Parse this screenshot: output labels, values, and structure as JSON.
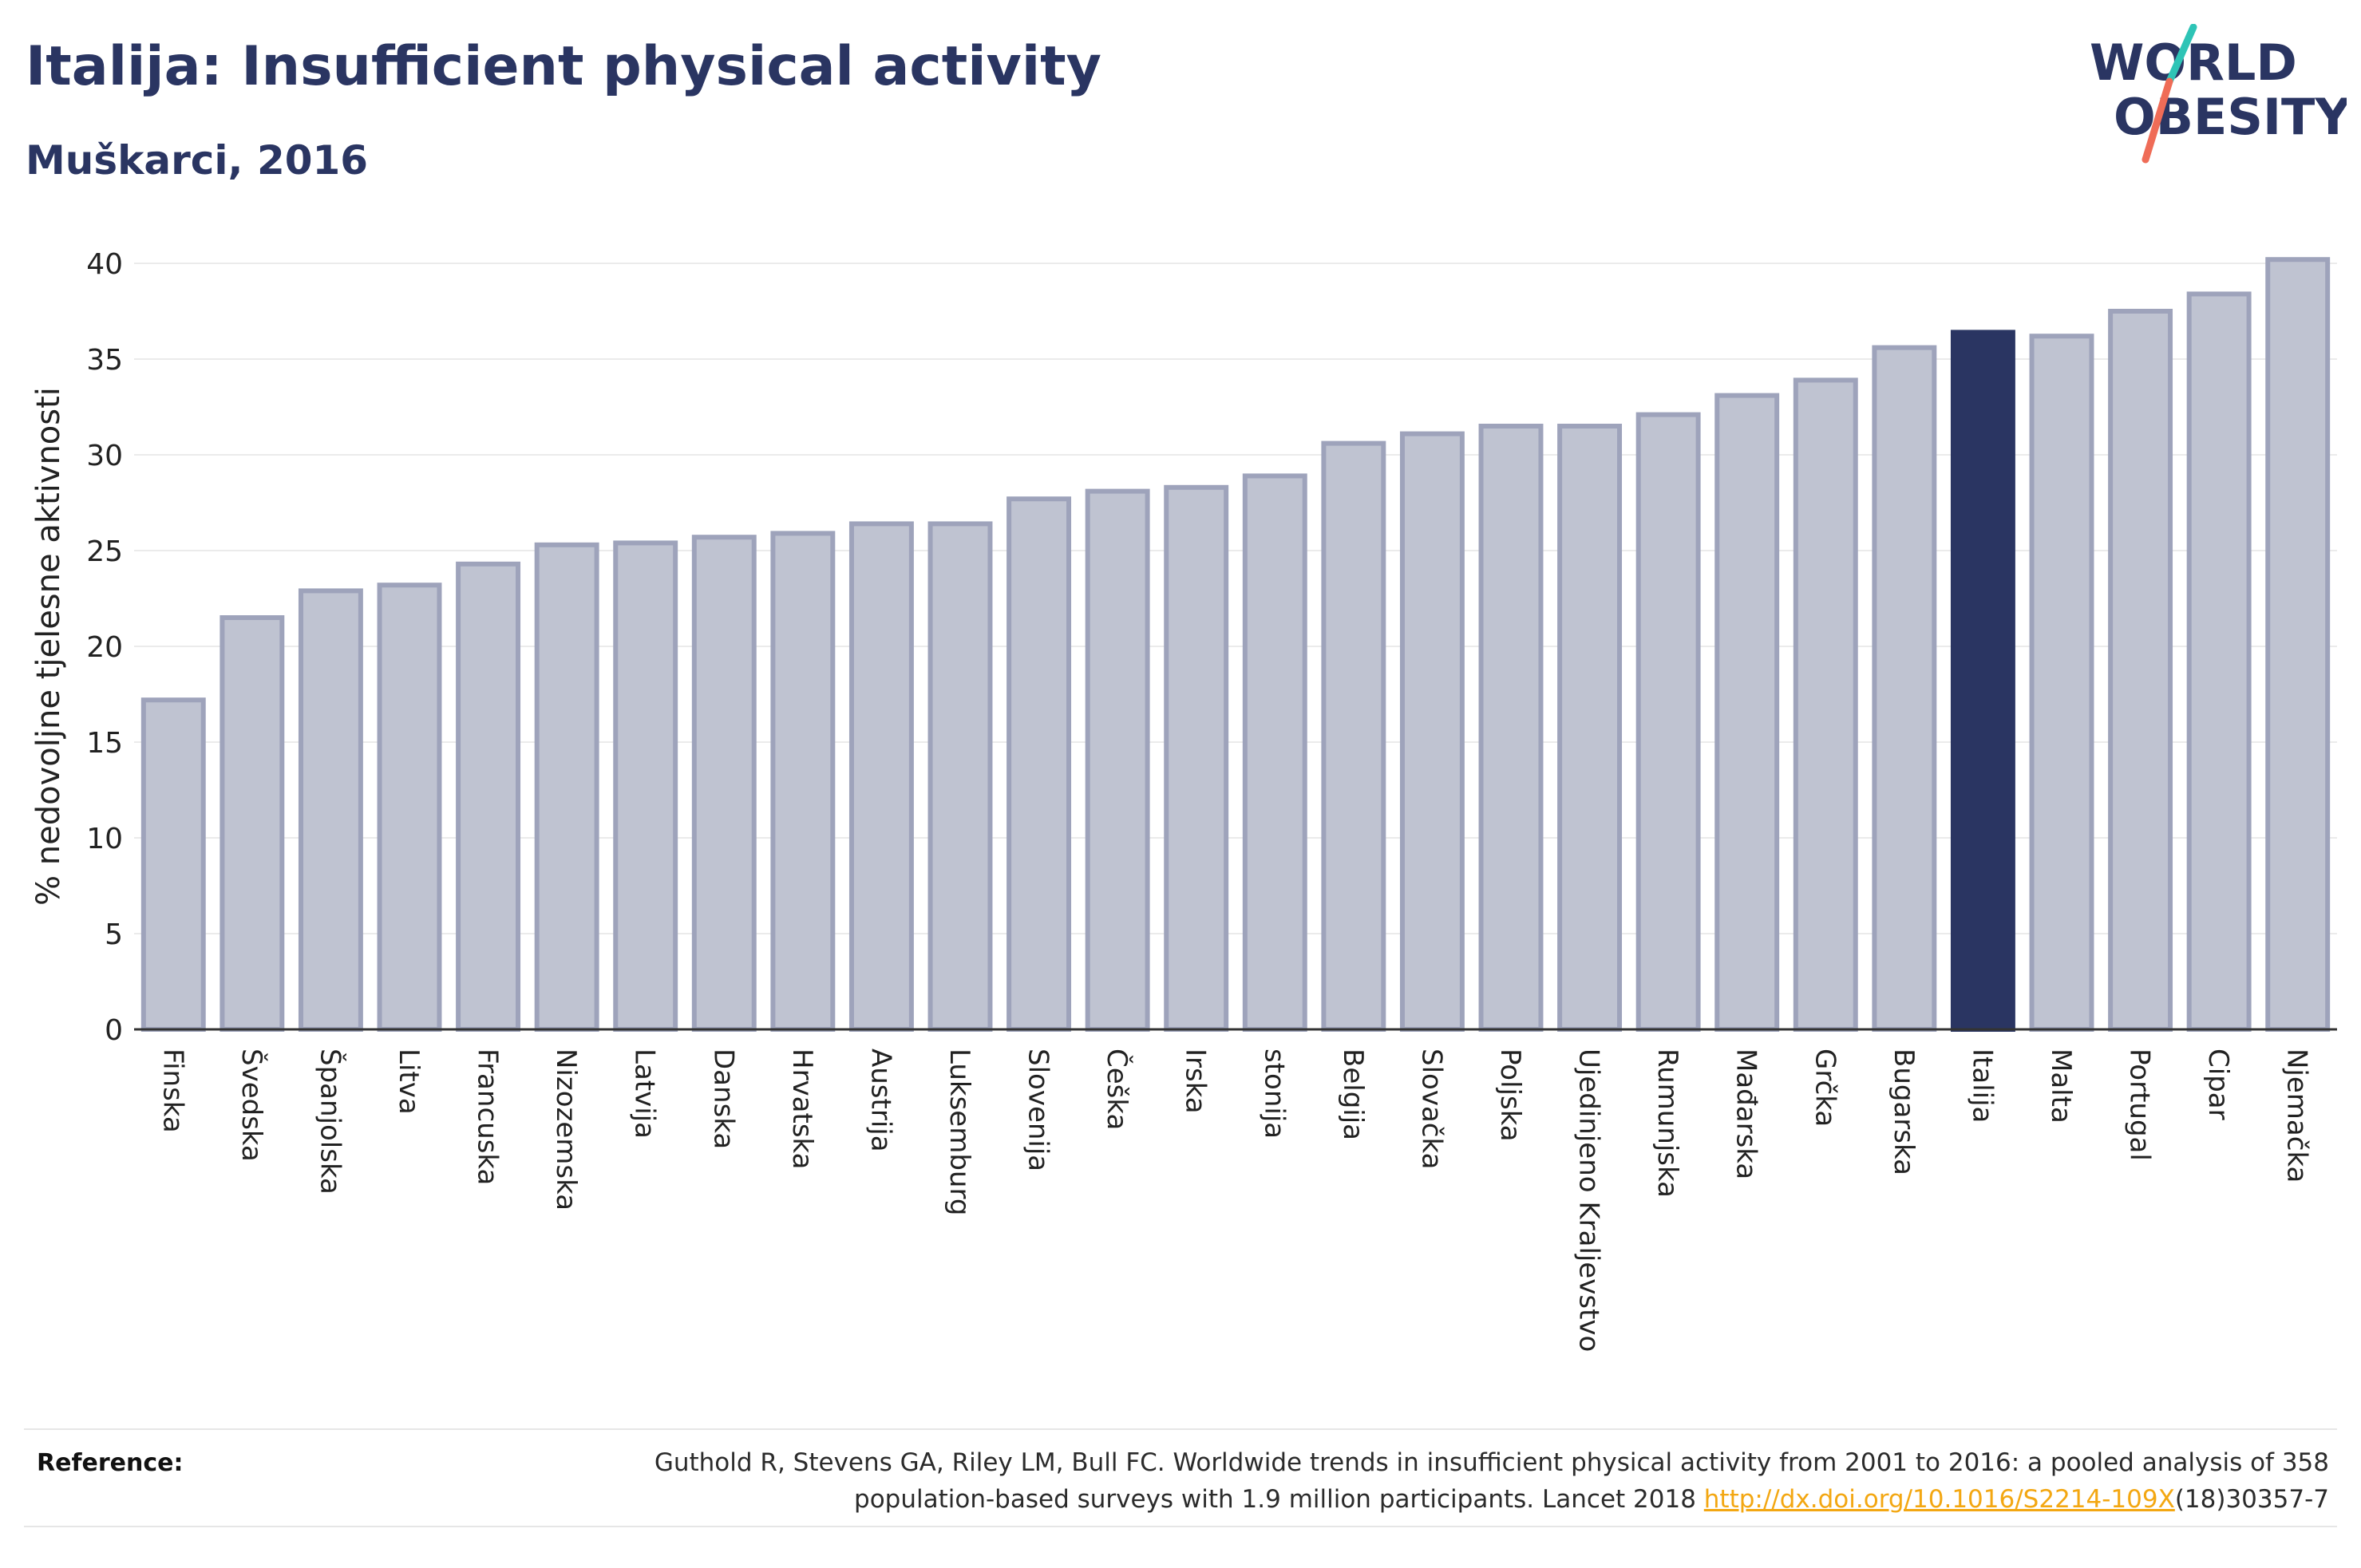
{
  "header": {
    "title": "Italija: Insufficient physical activity",
    "subtitle": "Muškarci, 2016"
  },
  "logo": {
    "line1": "WORLD",
    "line2": "OBESITY",
    "colors": {
      "text": "#2a3562",
      "slash_top": "#2ec4b6",
      "slash_bottom": "#ef6c57"
    }
  },
  "chart_data": {
    "type": "bar",
    "ylabel": "% nedovoljne tjelesne aktivnosti",
    "xlabel": "",
    "ylim": [
      0,
      40
    ],
    "yticks": [
      0,
      5,
      10,
      15,
      20,
      25,
      30,
      35,
      40
    ],
    "grid": true,
    "highlight": "Italija",
    "categories": [
      "Finska",
      "Švedska",
      "Španjolska",
      "Litva",
      "Francuska",
      "Nizozemska",
      "Latvija",
      "Danska",
      "Hrvatska",
      "Austrija",
      "Luksemburg",
      "Slovenija",
      "Češka",
      "Irska",
      "stonija",
      "Belgija",
      "Slovačka",
      "Poljska",
      "Ujedinjeno Kraljevstvo",
      "Rumunjska",
      "Mađarska",
      "Grčka",
      "Bugarska",
      "Italija",
      "Malta",
      "Portugal",
      "Cipar",
      "Njemačka"
    ],
    "values": [
      17.2,
      21.5,
      22.9,
      23.2,
      24.3,
      25.3,
      25.4,
      25.7,
      25.9,
      26.4,
      26.4,
      27.7,
      28.1,
      28.3,
      28.9,
      30.6,
      31.1,
      31.5,
      31.5,
      32.1,
      33.1,
      33.9,
      35.6,
      36.4,
      36.2,
      37.5,
      38.4,
      40.2
    ],
    "colors": {
      "bar": "#bfc3d1",
      "bar_edge": "#9ea3bb",
      "highlight": "#2a3562",
      "grid": "#ebebeb",
      "axis": "#333333"
    }
  },
  "reference": {
    "label": "Reference:",
    "text_line1": "Guthold R, Stevens GA, Riley LM, Bull FC. Worldwide trends in insufficient physical activity from 2001 to 2016: a pooled analysis of 358",
    "text_line2_before": "population-based surveys with 1.9 million participants. Lancet 2018 ",
    "link_text": "http://dx.doi.org/10.1016/S2214-109X",
    "text_line2_after": "(18)30357-7"
  }
}
